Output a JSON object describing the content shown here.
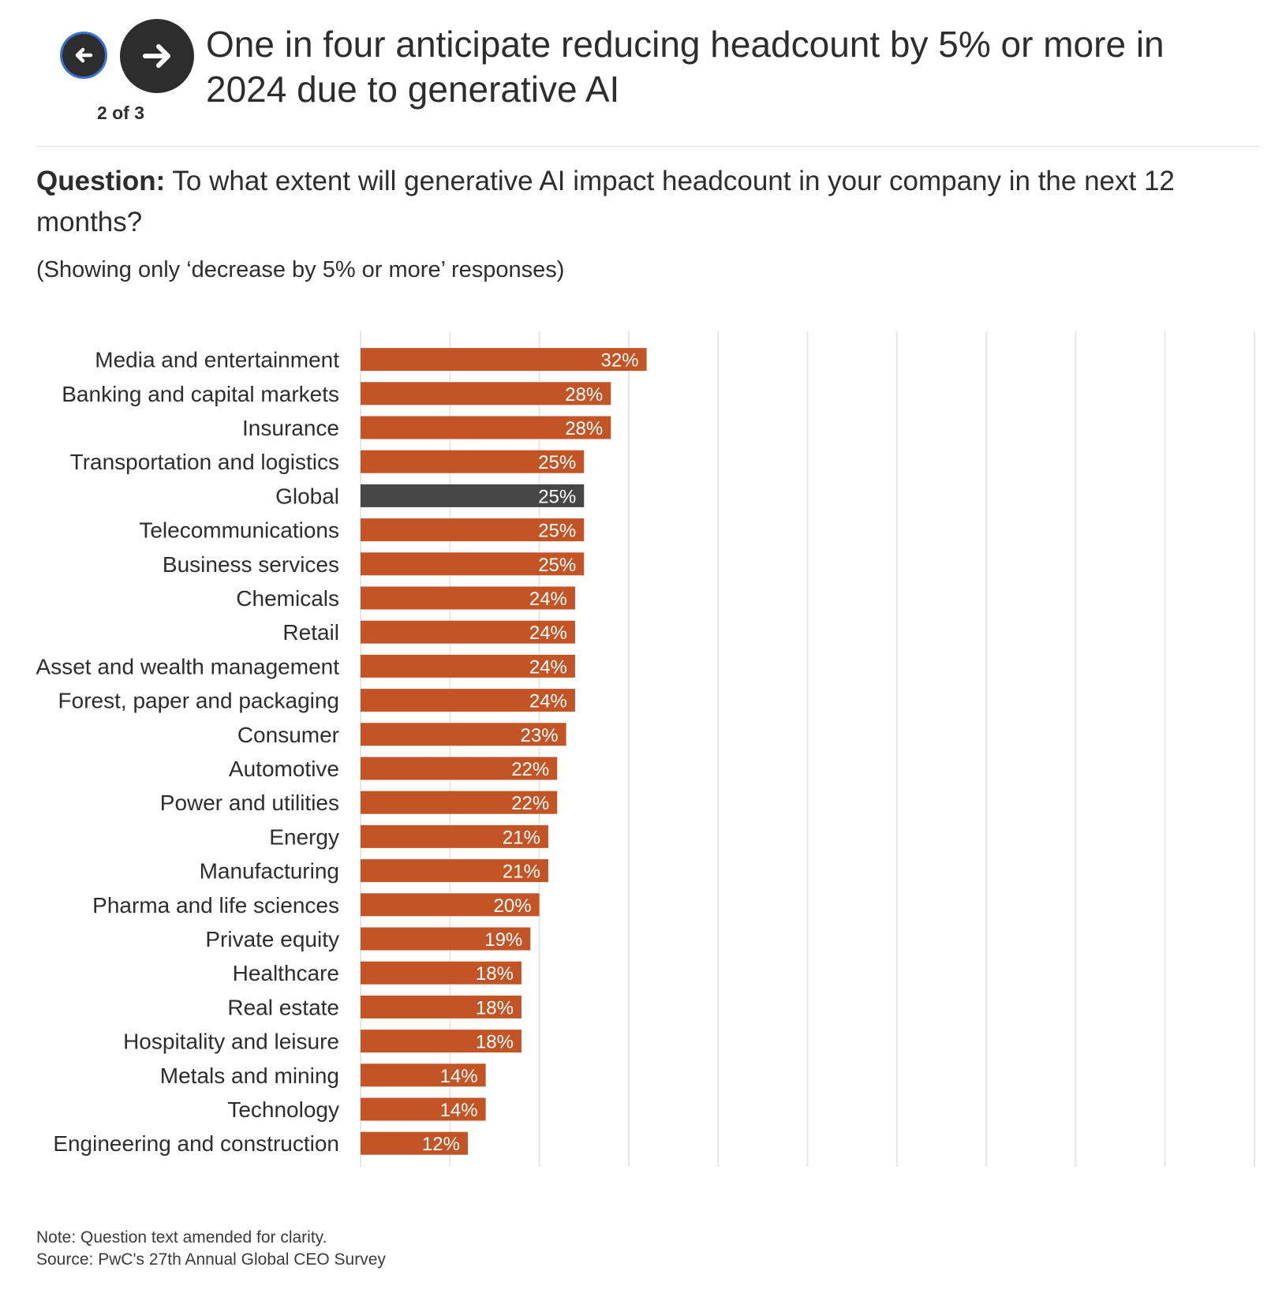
{
  "header": {
    "pager_text": "2 of 3",
    "title": "One in four anticipate reducing headcount by 5% or more in 2024 due to generative AI"
  },
  "question": {
    "label": "Question:",
    "text": "To what extent will generative AI impact headcount in your company in the next 12 months?"
  },
  "subnote": "(Showing only ‘decrease by 5% or more’ responses)",
  "footer": {
    "note": "Note: Question text amended for clarity.",
    "source": "Source: PwC's 27th Annual Global CEO Survey"
  },
  "colors": {
    "bar": "#c25425",
    "highlight_bar": "#464646",
    "grid": "#e6e6e6",
    "text": "#2d2d2d"
  },
  "chart_data": {
    "type": "bar",
    "orientation": "horizontal",
    "categories": [
      "Media and entertainment",
      "Banking and capital markets",
      "Insurance",
      "Transportation and logistics",
      "Global",
      "Telecommunications",
      "Business services",
      "Chemicals",
      "Retail",
      "Asset and wealth management",
      "Forest, paper and packaging",
      "Consumer",
      "Automotive",
      "Power and utilities",
      "Energy",
      "Manufacturing",
      "Pharma and life sciences",
      "Private equity",
      "Healthcare",
      "Real estate",
      "Hospitality and leisure",
      "Metals and mining",
      "Technology",
      "Engineering and construction"
    ],
    "values": [
      32,
      28,
      28,
      25,
      25,
      25,
      25,
      24,
      24,
      24,
      24,
      23,
      22,
      22,
      21,
      21,
      20,
      19,
      18,
      18,
      18,
      14,
      14,
      12
    ],
    "value_labels": [
      "32%",
      "28%",
      "28%",
      "25%",
      "25%",
      "25%",
      "25%",
      "24%",
      "24%",
      "24%",
      "24%",
      "23%",
      "22%",
      "22%",
      "21%",
      "21%",
      "20%",
      "19%",
      "18%",
      "18%",
      "18%",
      "14%",
      "14%",
      "12%"
    ],
    "highlight": "Global",
    "xlim": [
      0,
      100
    ],
    "grid": true
  }
}
